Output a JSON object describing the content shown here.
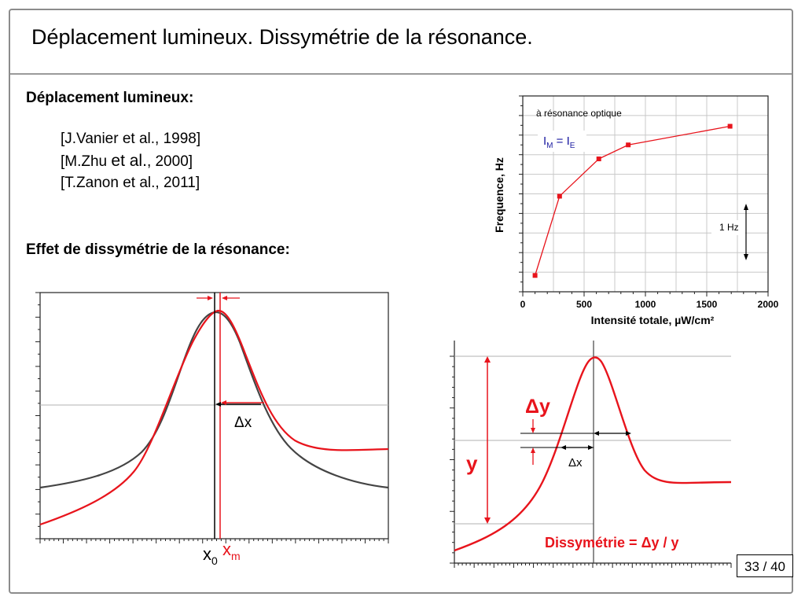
{
  "slide": {
    "title": "Déplacement lumineux. Dissymétrie de la résonance.",
    "page": "33 / 40"
  },
  "section1": {
    "heading": "Déplacement lumineux:",
    "refs": [
      {
        "pre": "[J.Vanier et al., 1998]"
      },
      {
        "pre": "[M.Zhu ",
        "mid": "et al.",
        "post": ", 2000]"
      },
      {
        "pre": "[T.Zanon et al., 2011]"
      }
    ]
  },
  "section2": {
    "heading": "Effet de dissymétrie de la résonance:"
  },
  "colors": {
    "curve_red": "#e8141c",
    "curve_gray": "#444444",
    "note_blue": "#1a1aa0"
  },
  "chart_data": [
    {
      "type": "line",
      "xlabel": "Intensité totale, µW/cm²",
      "ylabel": "Frequence, Hz",
      "xlim": [
        0,
        2000
      ],
      "xticks": [
        "0",
        "500",
        "1000",
        "1500",
        "2000"
      ],
      "grid": true,
      "annotations": [
        "à résonance optique",
        "I_M = I_E",
        "1 Hz"
      ],
      "series": [
        {
          "x": [
            100,
            300,
            620,
            860,
            1690
          ],
          "y": [
            -1.45,
            0.25,
            1.05,
            1.35,
            1.75
          ]
        }
      ]
    },
    {
      "type": "line",
      "labels": [
        "x0",
        "xm",
        "Δx"
      ],
      "series": [
        {
          "color": "#444444",
          "shape": "Lorentzian, symmetric about x0"
        },
        {
          "color": "#e8141c",
          "shape": "Lorentzian peaked near xm, asymmetric wings"
        }
      ]
    },
    {
      "type": "line",
      "labels": [
        "y",
        "Δy",
        "Δx"
      ],
      "annotation": "Dissymétrie = Δy / y",
      "series": [
        {
          "color": "#e8141c",
          "shape": "asymmetric resonance line"
        }
      ]
    }
  ]
}
